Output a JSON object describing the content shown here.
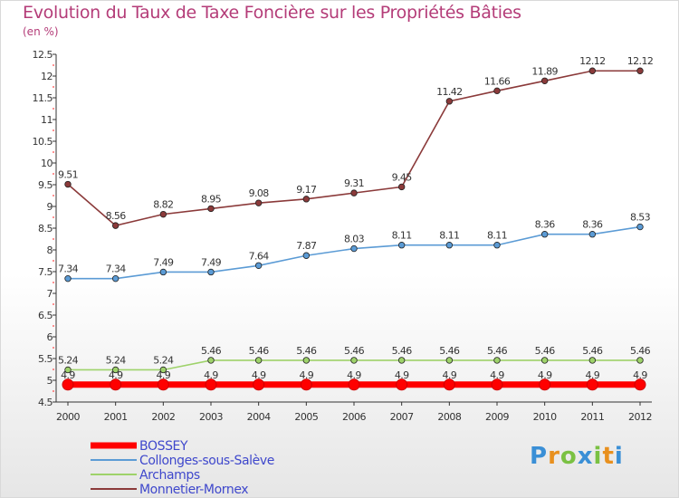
{
  "title": "Evolution du Taux de Taxe Foncière sur les Propriétés Bâties",
  "unit_label": "(en %)",
  "logo_text": "Proxiti",
  "chart_data": {
    "type": "line",
    "title": "Evolution du Taux de Taxe Foncière sur les Propriétés Bâties",
    "ylabel": "(en %)",
    "xlabel": "",
    "ylim": [
      4.5,
      12.5
    ],
    "yticks": [
      4.5,
      5,
      5.5,
      6,
      6.5,
      7,
      7.5,
      8,
      8.5,
      9,
      9.5,
      10,
      10.5,
      11,
      11.5,
      12,
      12.5
    ],
    "ytick_labels": [
      "4.5",
      "5",
      "5.5",
      "6",
      "6.5",
      "7",
      "7.5",
      "8",
      "8.5",
      "9",
      "9.5",
      "10",
      "10.5",
      "11",
      "11.5",
      "12",
      "12.5"
    ],
    "categories": [
      "2000",
      "2001",
      "2002",
      "2003",
      "2004",
      "2005",
      "2006",
      "2007",
      "2008",
      "2009",
      "2010",
      "2011",
      "2012"
    ],
    "series": [
      {
        "name": "BOSSEY",
        "color": "#ff0000",
        "values": [
          4.9,
          4.9,
          4.9,
          4.9,
          4.9,
          4.9,
          4.9,
          4.9,
          4.9,
          4.9,
          4.9,
          4.9,
          4.9
        ],
        "labels": [
          "4.9",
          "4.9",
          "4.9",
          "4.9",
          "4.9",
          "4.9",
          "4.9",
          "4.9",
          "4.9",
          "4.9",
          "4.9",
          "4.9",
          "4.9"
        ]
      },
      {
        "name": "Collonges-sous-Salève",
        "color": "#5b9bd5",
        "values": [
          7.34,
          7.34,
          7.49,
          7.49,
          7.64,
          7.87,
          8.03,
          8.11,
          8.11,
          8.11,
          8.36,
          8.36,
          8.53
        ],
        "labels": [
          "7.34",
          "7.34",
          "7.49",
          "7.49",
          "7.64",
          "7.87",
          "8.03",
          "8.11",
          "8.11",
          "8.11",
          "8.36",
          "8.36",
          "8.53"
        ]
      },
      {
        "name": "Archamps",
        "color": "#9ed26a",
        "values": [
          5.24,
          5.24,
          5.24,
          5.46,
          5.46,
          5.46,
          5.46,
          5.46,
          5.46,
          5.46,
          5.46,
          5.46,
          5.46
        ],
        "labels": [
          "5.24",
          "5.24",
          "5.24",
          "5.46",
          "5.46",
          "5.46",
          "5.46",
          "5.46",
          "5.46",
          "5.46",
          "5.46",
          "5.46",
          "5.46"
        ]
      },
      {
        "name": "Monnetier-Mornex",
        "color": "#8b3a3a",
        "values": [
          9.51,
          8.56,
          8.82,
          8.95,
          9.08,
          9.17,
          9.31,
          9.45,
          11.42,
          11.66,
          11.89,
          12.12,
          12.12
        ],
        "labels": [
          "9.51",
          "8.56",
          "8.82",
          "8.95",
          "9.08",
          "9.17",
          "9.31",
          "9.45",
          "11.42",
          "11.66",
          "11.89",
          "12.12",
          "12.12"
        ]
      }
    ],
    "legend_position": "bottom-left",
    "grid": false
  }
}
